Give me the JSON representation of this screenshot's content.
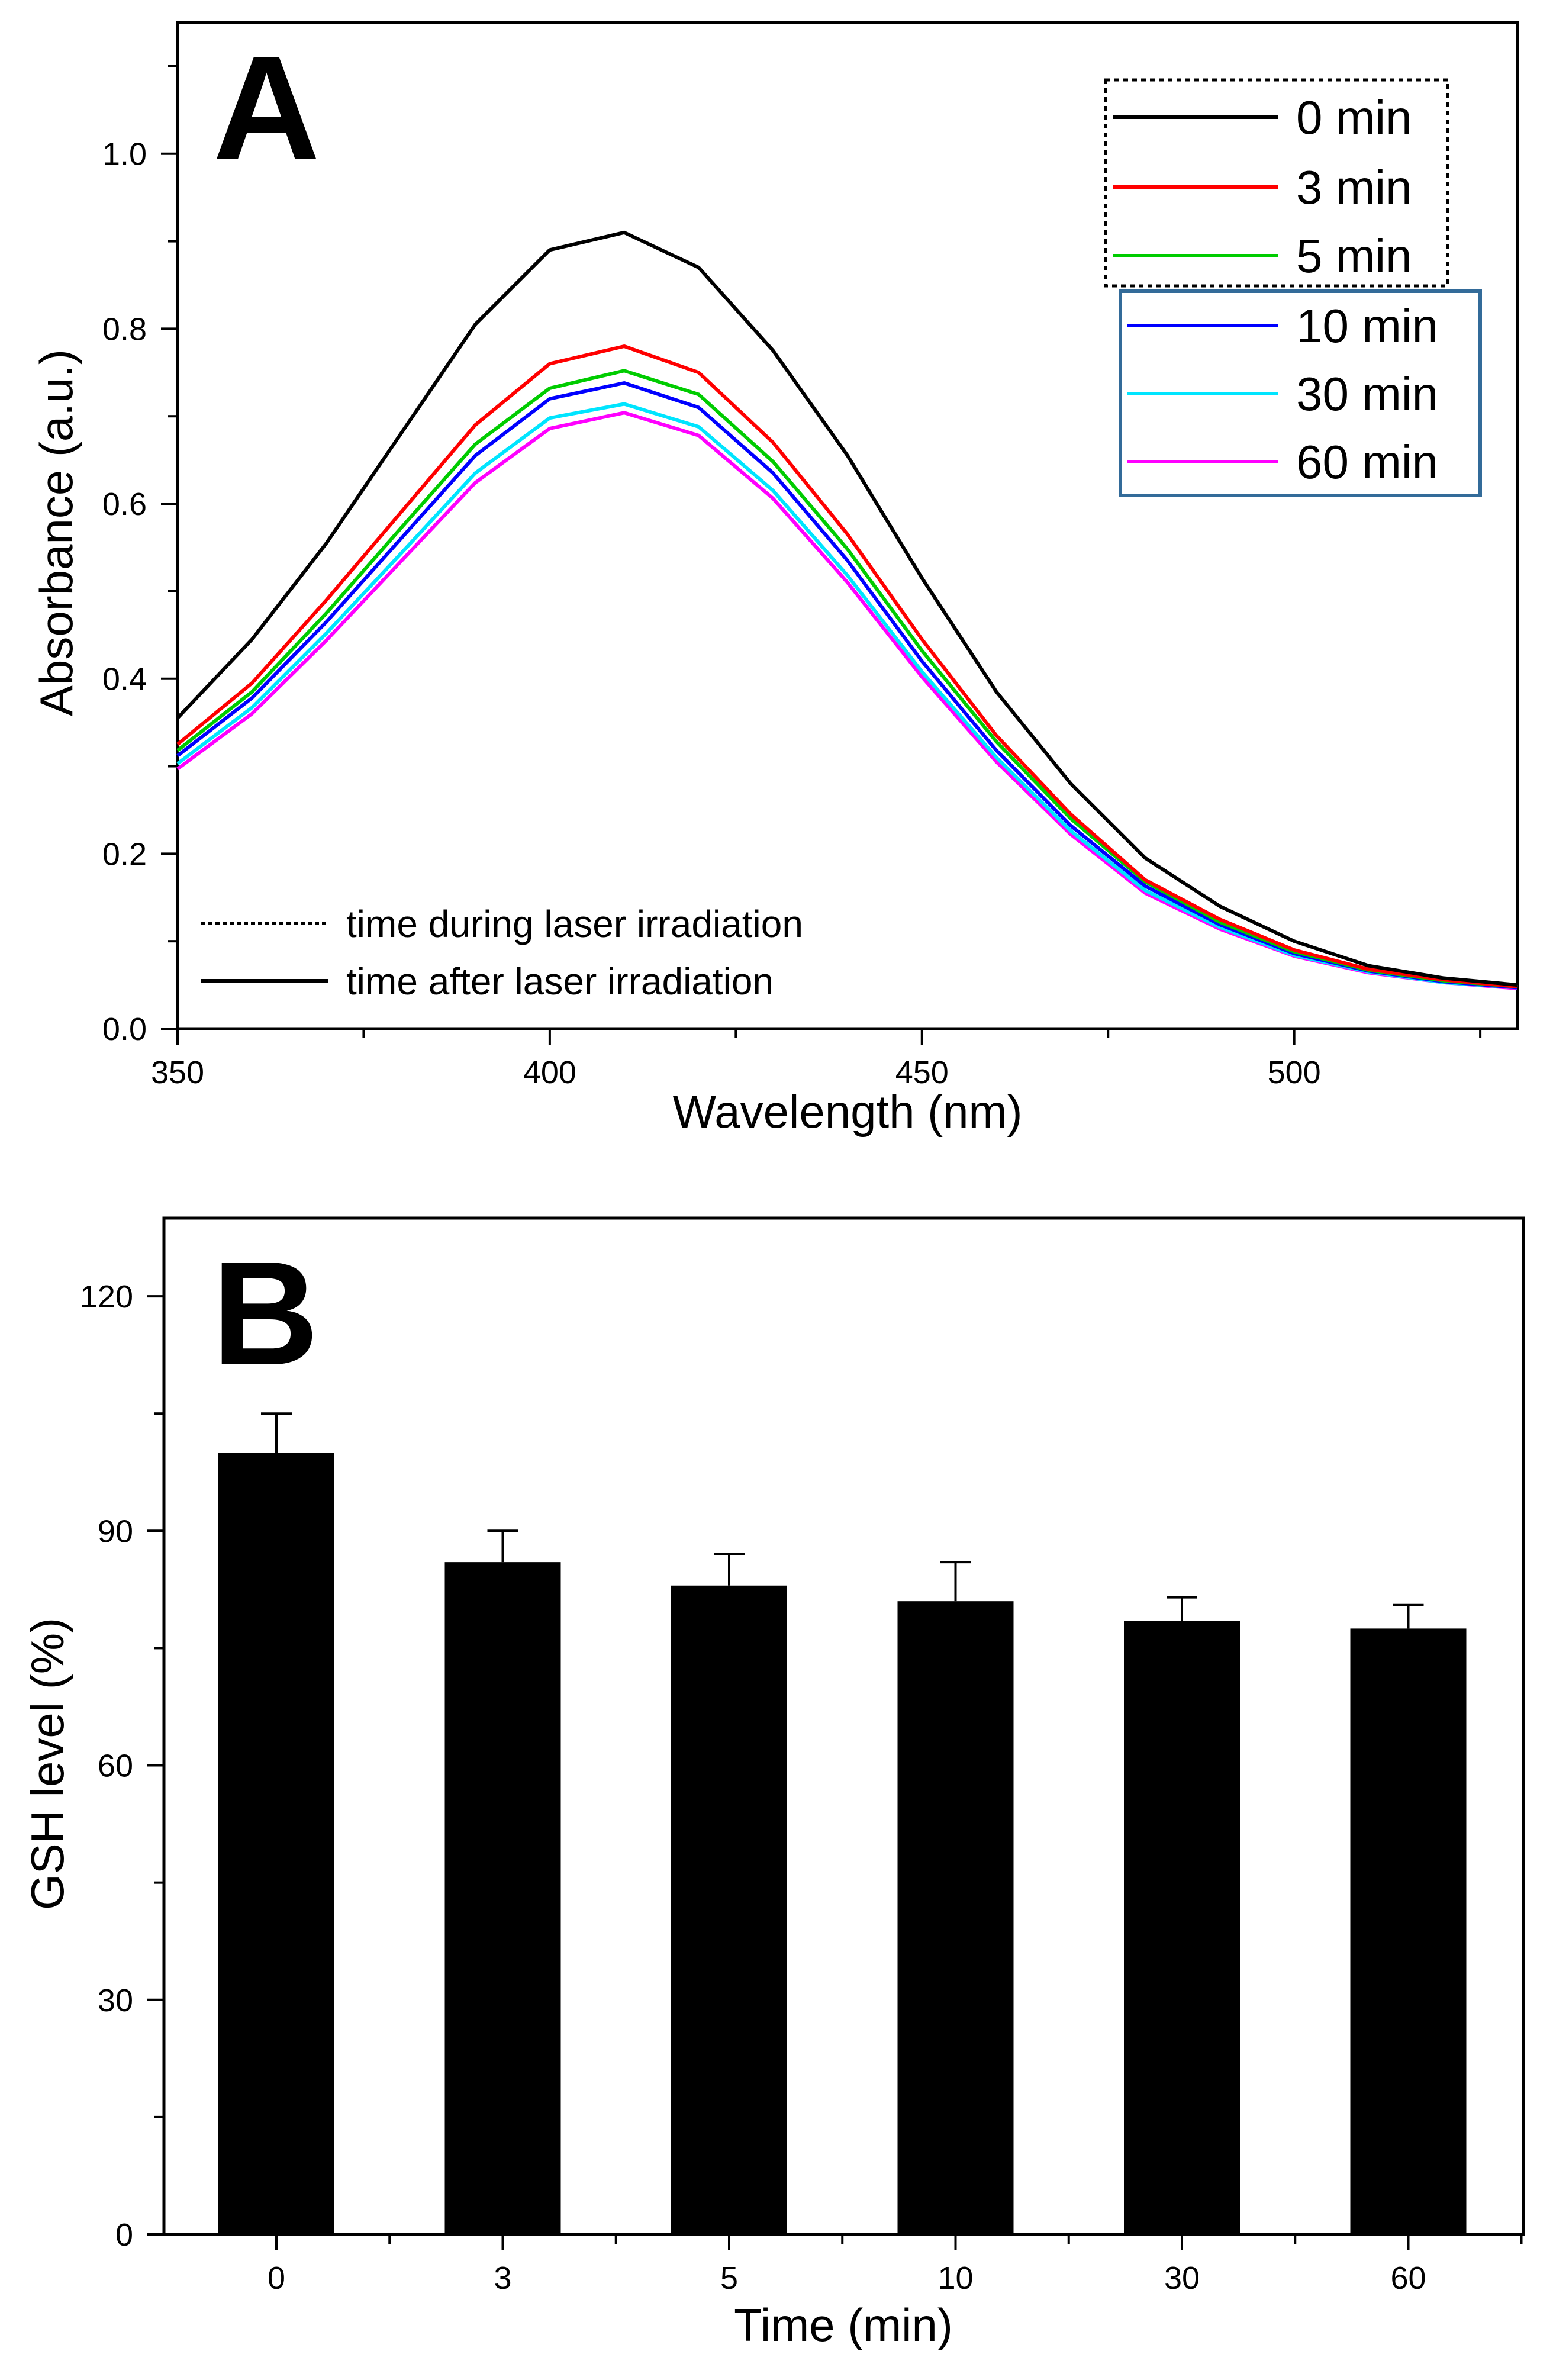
{
  "chart_data": [
    {
      "type": "line",
      "panel_label": "A",
      "xlabel": "Wavelength (nm)",
      "ylabel": "Absorbance (a.u.)",
      "xlim": [
        350,
        530
      ],
      "ylim": [
        0.0,
        1.15
      ],
      "x_ticks": [
        350,
        400,
        450,
        500
      ],
      "x_tick_labels": [
        "350",
        "400",
        "450",
        "500"
      ],
      "y_ticks": [
        0.0,
        0.2,
        0.4,
        0.6,
        0.8,
        1.0
      ],
      "y_tick_labels": [
        "0.0",
        "0.2",
        "0.4",
        "0.6",
        "0.8",
        "1.0"
      ],
      "x": [
        350,
        360,
        370,
        380,
        390,
        400,
        410,
        420,
        430,
        440,
        450,
        460,
        470,
        480,
        490,
        500,
        510,
        520,
        530
      ],
      "series": [
        {
          "name": "0 min",
          "label": "0 min",
          "color": "#000000",
          "group": "during",
          "values": [
            0.355,
            0.445,
            0.555,
            0.68,
            0.805,
            0.89,
            0.91,
            0.87,
            0.775,
            0.655,
            0.515,
            0.385,
            0.28,
            0.195,
            0.14,
            0.1,
            0.072,
            0.058,
            0.05
          ]
        },
        {
          "name": "3 min",
          "label": "3 min",
          "color": "#ff0000",
          "group": "during",
          "values": [
            0.325,
            0.395,
            0.49,
            0.59,
            0.69,
            0.76,
            0.78,
            0.75,
            0.67,
            0.565,
            0.445,
            0.335,
            0.245,
            0.17,
            0.125,
            0.09,
            0.068,
            0.056,
            0.048
          ]
        },
        {
          "name": "5 min",
          "label": "5 min",
          "color": "#00cc00",
          "group": "during",
          "values": [
            0.318,
            0.385,
            0.475,
            0.572,
            0.668,
            0.732,
            0.752,
            0.725,
            0.648,
            0.548,
            0.432,
            0.328,
            0.24,
            0.168,
            0.122,
            0.088,
            0.067,
            0.055,
            0.048
          ]
        },
        {
          "name": "10 min",
          "label": "10 min",
          "color": "#0000ff",
          "group": "after",
          "values": [
            0.312,
            0.378,
            0.465,
            0.56,
            0.655,
            0.72,
            0.738,
            0.71,
            0.635,
            0.535,
            0.42,
            0.318,
            0.232,
            0.163,
            0.119,
            0.086,
            0.066,
            0.054,
            0.047
          ]
        },
        {
          "name": "30 min",
          "label": "30 min",
          "color": "#00e5ff",
          "group": "after",
          "values": [
            0.303,
            0.367,
            0.452,
            0.543,
            0.635,
            0.698,
            0.714,
            0.688,
            0.615,
            0.518,
            0.408,
            0.31,
            0.226,
            0.158,
            0.116,
            0.084,
            0.065,
            0.053,
            0.047
          ]
        },
        {
          "name": "60 min",
          "label": "60 min",
          "color": "#ff00ff",
          "group": "after",
          "values": [
            0.297,
            0.36,
            0.444,
            0.534,
            0.624,
            0.686,
            0.704,
            0.678,
            0.606,
            0.51,
            0.402,
            0.305,
            0.222,
            0.155,
            0.114,
            0.083,
            0.064,
            0.053,
            0.046
          ]
        }
      ],
      "legend_placement": "top-right",
      "legend_group_box_colors": {
        "during": "#000000",
        "after": "#336b99"
      },
      "line_style_notes": [
        {
          "style": "dotted",
          "text": "time during laser irradiation"
        },
        {
          "style": "solid",
          "text": "time after laser irradiation"
        }
      ],
      "grid": false
    },
    {
      "type": "bar",
      "panel_label": "B",
      "xlabel": "Time (min)",
      "ylabel": "GSH level (%)",
      "categories": [
        "0",
        "3",
        "5",
        "10",
        "30",
        "60"
      ],
      "values": [
        100,
        86,
        83,
        81,
        78.5,
        77.5
      ],
      "errors": [
        5,
        4,
        4,
        5,
        3,
        3
      ],
      "ylim": [
        0,
        130
      ],
      "y_ticks": [
        0,
        30,
        60,
        90,
        120
      ],
      "y_tick_labels": [
        "0",
        "30",
        "60",
        "90",
        "120"
      ],
      "bar_color": "#000000",
      "grid": false
    }
  ]
}
